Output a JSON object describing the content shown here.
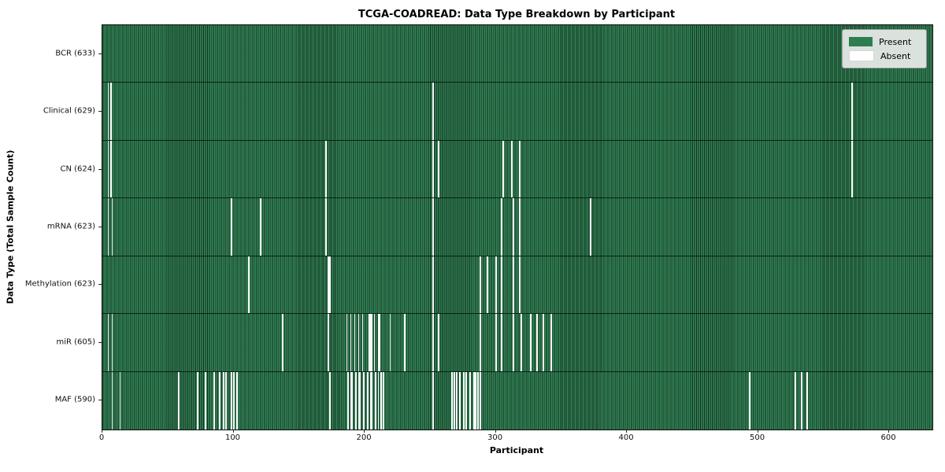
{
  "chart_data": {
    "type": "heatmap",
    "title": "TCGA-COADREAD: Data Type Breakdown by Participant",
    "xlabel": "Participant",
    "ylabel": "Data Type (Total Sample Count)",
    "x_ticks": [
      0,
      100,
      200,
      300,
      400,
      500,
      600
    ],
    "x_range": [
      0,
      633
    ],
    "n_participants": 633,
    "grid": false,
    "legend_position": "upper right",
    "legend": {
      "present_label": "Present",
      "absent_label": "Absent"
    },
    "colors": {
      "present": "#2d7d50",
      "present_edge": "#0e2f1d",
      "absent": "#fafafa",
      "frame": "#0d0d0d",
      "legend_bg": "#e9ede9"
    },
    "rows": [
      {
        "label": "BCR (633)",
        "present_count": 633,
        "absent_participants": []
      },
      {
        "label": "Clinical (629)",
        "present_count": 629,
        "absent_participants": [
          4,
          6,
          252,
          571
        ]
      },
      {
        "label": "CN (624)",
        "present_count": 624,
        "absent_participants": [
          4,
          6,
          170,
          252,
          256,
          305,
          312,
          318,
          571
        ]
      },
      {
        "label": "mRNA (623)",
        "present_count": 623,
        "absent_participants": [
          4,
          7,
          98,
          120,
          170,
          252,
          304,
          313,
          318,
          372
        ]
      },
      {
        "label": "Methylation (623)",
        "present_count": 623,
        "absent_participants": [
          111,
          172,
          173,
          252,
          288,
          293,
          300,
          304,
          313,
          318
        ]
      },
      {
        "label": "miR (605)",
        "present_count": 605,
        "absent_participants": [
          4,
          7,
          137,
          172,
          186,
          189,
          192,
          195,
          198,
          203,
          204,
          205,
          207,
          210,
          211,
          219,
          230,
          252,
          256,
          288,
          300,
          304,
          313,
          319,
          326,
          331,
          336,
          342
        ]
      },
      {
        "label": "MAF (590)",
        "present_count": 590,
        "absent_participants": [
          7,
          13,
          58,
          72,
          78,
          85,
          89,
          92,
          94,
          98,
          100,
          102,
          173,
          187,
          189,
          190,
          193,
          195,
          196,
          199,
          202,
          204,
          205,
          208,
          210,
          212,
          214,
          252,
          266,
          268,
          270,
          272,
          275,
          277,
          280,
          283,
          284,
          286,
          288,
          493,
          528,
          533,
          537
        ]
      }
    ]
  }
}
